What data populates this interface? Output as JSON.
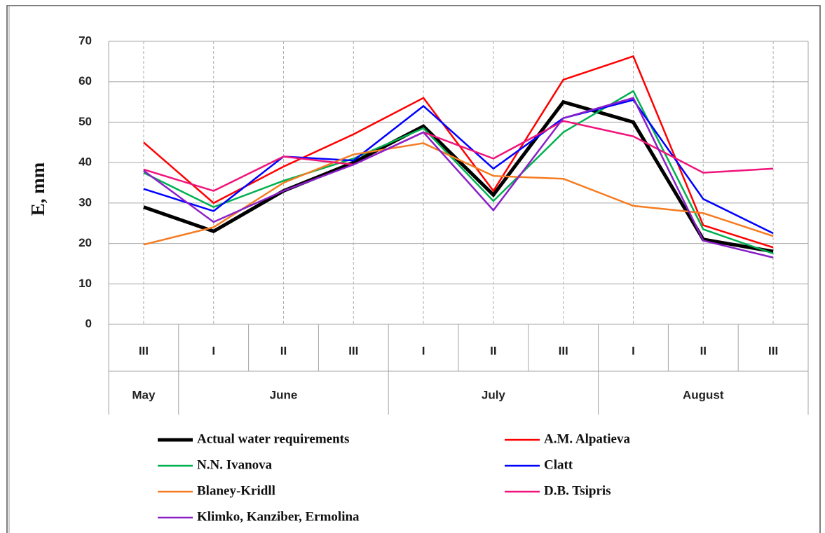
{
  "chart_data": {
    "type": "line",
    "y_axis_label": "E, mm",
    "categories": [
      "III",
      "I",
      "II",
      "III",
      "I",
      "II",
      "III",
      "I",
      "II",
      "III"
    ],
    "month_groups": [
      {
        "name": "May",
        "span": 1
      },
      {
        "name": "June",
        "span": 3
      },
      {
        "name": "July",
        "span": 3
      },
      {
        "name": "August",
        "span": 3
      }
    ],
    "ylim": [
      0,
      70
    ],
    "yticks": [
      0,
      10,
      20,
      30,
      40,
      50,
      60,
      70
    ],
    "grid": true,
    "series": [
      {
        "name": "Actual water requirements",
        "color": "#000000",
        "width": 5,
        "values": [
          29,
          23,
          33,
          40,
          49,
          32,
          55,
          50,
          21,
          18
        ]
      },
      {
        "name": "A.M. Alpatieva",
        "color": "#ff0000",
        "width": 2.5,
        "values": [
          45,
          30,
          39,
          47,
          56,
          33,
          60.5,
          66.3,
          24.5,
          19
        ]
      },
      {
        "name": "N.N. Ivanova",
        "color": "#00b050",
        "width": 2.5,
        "values": [
          37.5,
          29,
          35.5,
          41,
          48.5,
          30.5,
          47.5,
          57.7,
          23.5,
          17.5
        ]
      },
      {
        "name": "Clatt",
        "color": "#0000ff",
        "width": 2.5,
        "values": [
          33.5,
          28,
          41.5,
          40.5,
          54,
          38.5,
          51,
          55.5,
          31,
          22.5
        ]
      },
      {
        "name": "Blaney-Kridll",
        "color": "#f57c22",
        "width": 2.5,
        "values": [
          19.7,
          24,
          35,
          42,
          44.8,
          36.7,
          36,
          29.3,
          27.5,
          21.8
        ]
      },
      {
        "name": "D.B. Tsipris",
        "color": "#f0147a",
        "width": 2.5,
        "values": [
          38.3,
          33,
          41.5,
          39.5,
          47.5,
          41,
          50.3,
          46.5,
          37.5,
          38.5
        ]
      },
      {
        "name": "Klimko, Kanziber, Ermolina",
        "color": "#8a1fc8",
        "width": 2.5,
        "values": [
          38,
          25.3,
          33,
          39.5,
          47.5,
          28.2,
          51,
          56,
          20.7,
          16.5
        ]
      }
    ]
  }
}
